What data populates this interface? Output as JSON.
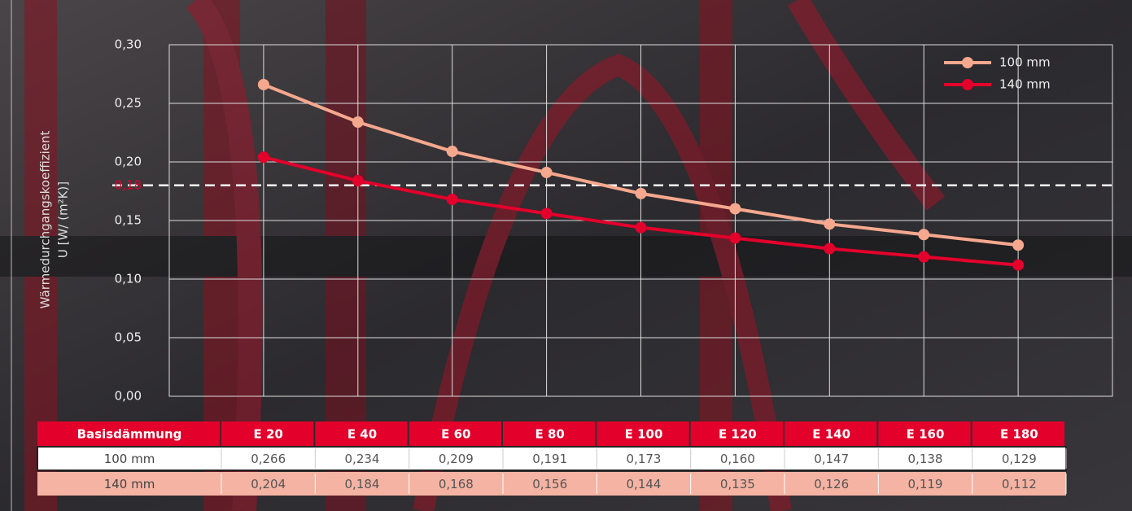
{
  "chart_data": {
    "type": "line",
    "ylabel": [
      "Wärmedurchgangskoeffizient",
      "U [W/ (m²K)]"
    ],
    "categories": [
      "E 20",
      "E 40",
      "E 60",
      "E 80",
      "E 100",
      "E 120",
      "E 140",
      "E 160",
      "E 180"
    ],
    "series": [
      {
        "name": "100 mm",
        "color": "#f5a88e",
        "values": [
          0.266,
          0.234,
          0.209,
          0.191,
          0.173,
          0.16,
          0.147,
          0.138,
          0.129
        ],
        "value_labels": [
          "0,266",
          "0,234",
          "0,209",
          "0,191",
          "0,173",
          "0,160",
          "0,147",
          "0,138",
          "0,129"
        ]
      },
      {
        "name": "140 mm",
        "color": "#e3002b",
        "values": [
          0.204,
          0.184,
          0.168,
          0.156,
          0.144,
          0.135,
          0.126,
          0.119,
          0.112
        ],
        "value_labels": [
          "0,204",
          "0,184",
          "0,168",
          "0,156",
          "0,144",
          "0,135",
          "0,126",
          "0,119",
          "0,112"
        ]
      }
    ],
    "ylim": [
      0,
      0.3
    ],
    "yticks": [
      {
        "value": 0,
        "label": "0,00"
      },
      {
        "value": 0.05,
        "label": "0,05"
      },
      {
        "value": 0.1,
        "label": "0,10"
      },
      {
        "value": 0.15,
        "label": "0,15"
      },
      {
        "value": 0.2,
        "label": "0,20"
      },
      {
        "value": 0.25,
        "label": "0,25"
      },
      {
        "value": 0.3,
        "label": "0,30"
      }
    ],
    "reference_line": {
      "value": 0.18,
      "label": "0,18"
    },
    "grid": true,
    "legend": "top-right",
    "table_header": "Basisdämmung"
  }
}
